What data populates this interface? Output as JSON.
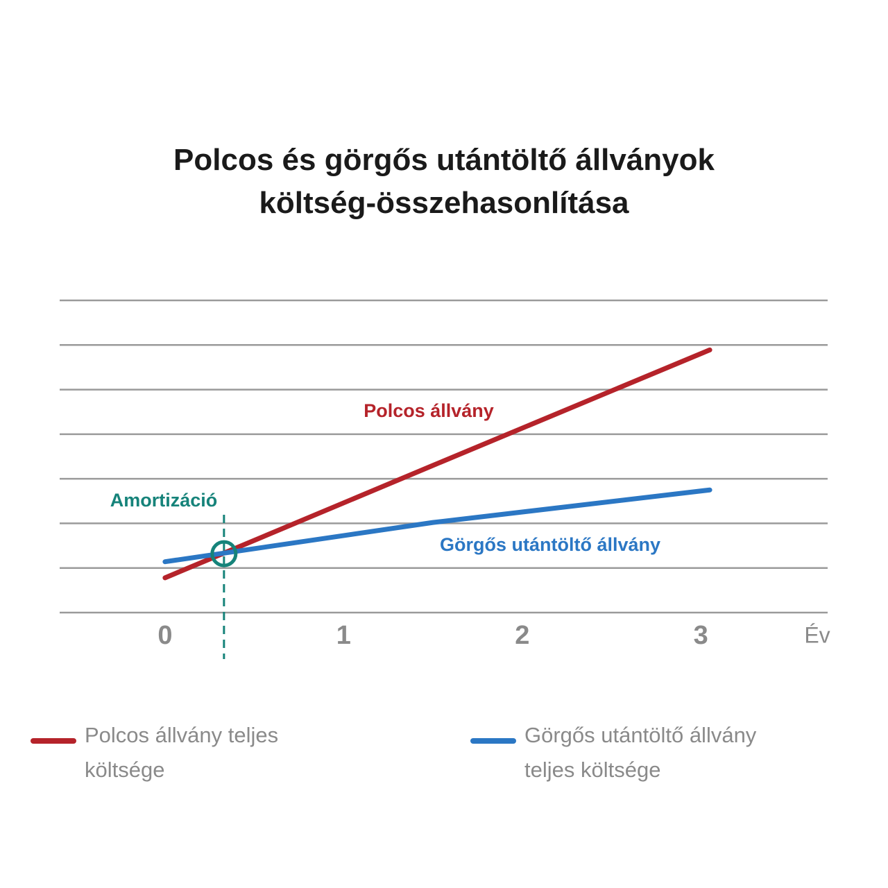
{
  "chart_data": {
    "type": "line",
    "title": "Polcos és görgős utántöltő állványok költség-összehasonlítása",
    "x": [
      0,
      1.5,
      3.05
    ],
    "xlim": [
      -0.59,
      3.71
    ],
    "xticks": [
      0,
      1,
      2,
      3
    ],
    "x_label": "Év",
    "ylim": [
      0,
      7
    ],
    "yticks": [
      0,
      1,
      2,
      3,
      4,
      5,
      6,
      7
    ],
    "grid": true,
    "series": [
      {
        "name": "Polcos állvány teljes költsége",
        "label": "Polcos állvány",
        "color": "#b5232a",
        "values": [
          0.78,
          3.3,
          5.89
        ]
      },
      {
        "name": "Görgős utántöltő állvány teljes költsége",
        "label": "Görgős utántöltő állvány",
        "color": "#2b77c4",
        "values": [
          1.14,
          2.02,
          2.75
        ]
      }
    ],
    "break_even": {
      "label": "Amortizáció",
      "x": 0.33,
      "y": 1.32,
      "color": "#16837a"
    }
  }
}
